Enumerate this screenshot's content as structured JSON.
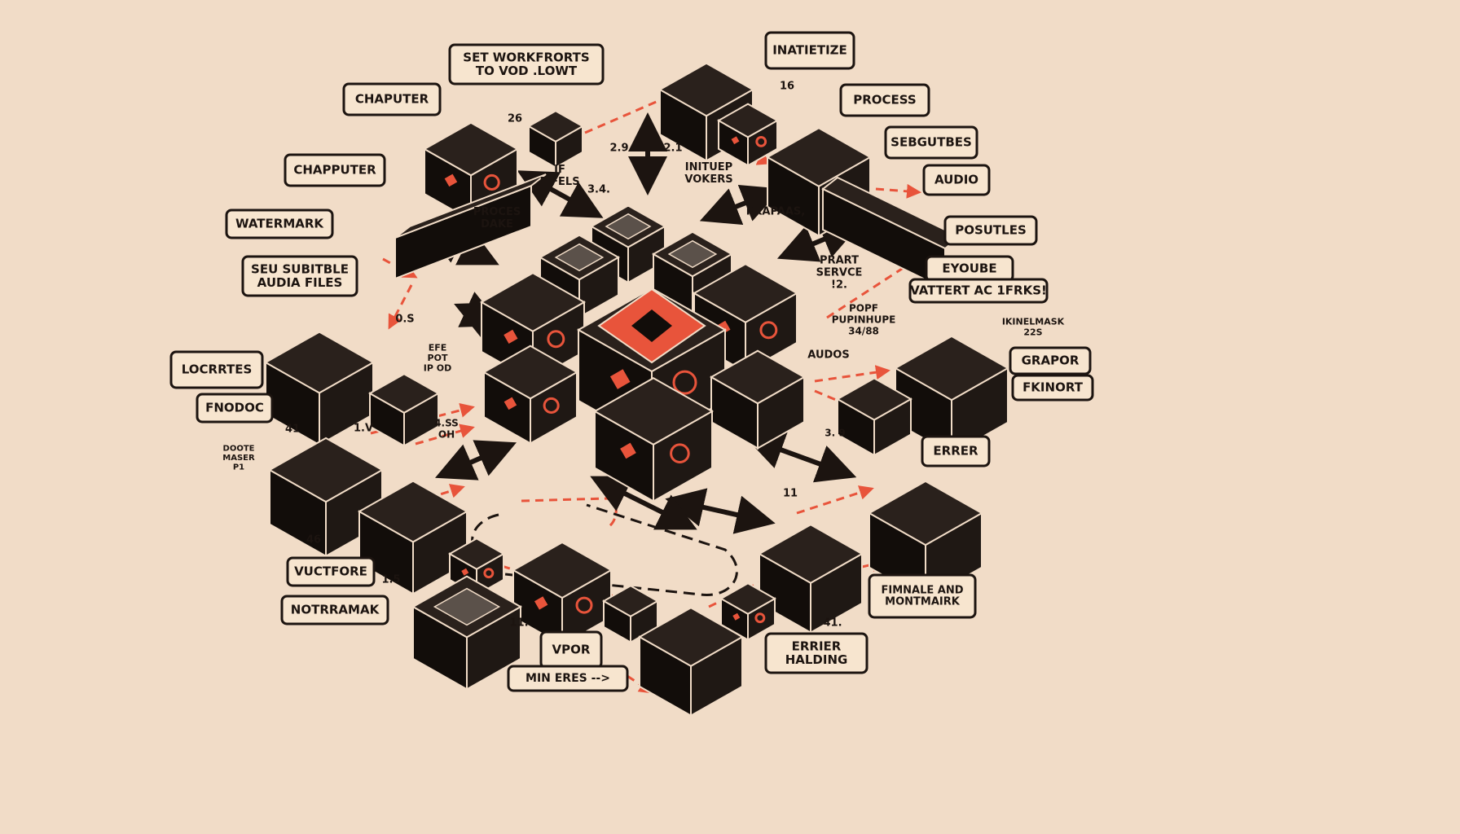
{
  "colors": {
    "background": "#f1dcc7",
    "ink": "#1c1410",
    "cube_top": "#2a211c",
    "cube_left": "#120d0a",
    "cube_right": "#1f1814",
    "accent": "#e8543b",
    "label_fill": "#f7e5cf",
    "edge_line": "#f1dcc7"
  },
  "boxed_labels": [
    "SET WORKFRORTS\nTO VOD .LOWT",
    "INATIETIZE",
    "CHAPUTER",
    "PROCESS",
    "CHAPPUTER",
    "SEBGUTBES",
    "AUDIO",
    "WATERMARK",
    "POSUTLES",
    "SEU SUBITBLE\nAUDIA FILES",
    "EYOUBE",
    "VATTERT AC 1FRKS!",
    "LOCRRTES",
    "GRAPOR",
    "FNODOC",
    "FKINORT",
    "ERRER",
    "VUCTFORE",
    "NOTRRAMAK",
    "FIMNALE AND\nMONTMAIRK",
    "VPOR",
    "ERRIER\nHALDING",
    "MIN ERES -->"
  ],
  "free_labels": [
    "26",
    "16",
    "2.9",
    "2.1",
    "IF\nFIFELS",
    "INITUEP\nVOKERS",
    "3.4.",
    "PROCES\nDAKE",
    "PKAPAAS,",
    "PRART\nSERVCE\n!2.",
    "POPF\nPUPINHUPE\n34/88",
    "IKINELMASK\n22S",
    "0.S",
    "EFE\nPOT\nIP OD",
    "AUDOS",
    "41",
    "1.V",
    "4.SS\nOH",
    "DOOTE\nMASER\nP1",
    "3. 9",
    "11",
    "46",
    "1.5",
    "11.",
    "41."
  ],
  "cube_count": 25,
  "arrow_count": 22
}
